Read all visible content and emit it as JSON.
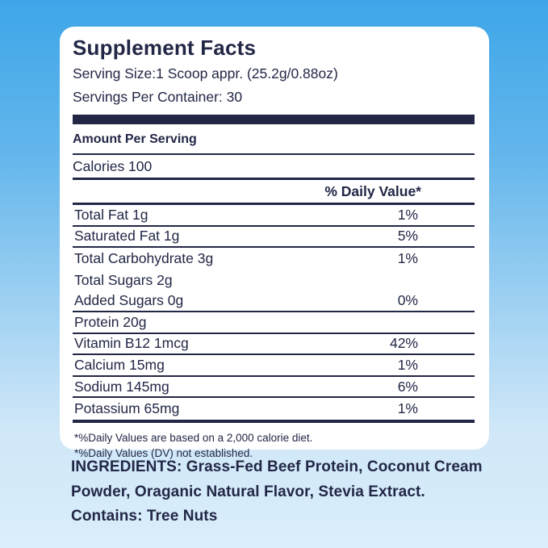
{
  "colors": {
    "text_navy": "#222746",
    "panel_background": "#ffffff",
    "background_top": "#3ea6e8",
    "background_bottom": "#daeefb"
  },
  "panel": {
    "title": "Supplement Facts",
    "serving_size": "Serving Size:1 Scoop appr. (25.2g/0.88oz)",
    "servings_per_container": "Servings Per Container: 30",
    "amount_per_serving": "Amount Per Serving",
    "calories": "Calories 100",
    "daily_value_header": "% Daily Value*",
    "rows": [
      {
        "label": "Total Fat 1g",
        "value": "1%",
        "divider": true
      },
      {
        "label": "Saturated Fat 1g",
        "value": "5%",
        "divider": true
      },
      {
        "label": "Total Carbohydrate 3g",
        "value": "1%",
        "divider": false
      },
      {
        "label": "Total Sugars 2g",
        "value": "",
        "divider": false
      },
      {
        "label": "Added Sugars 0g",
        "value": "0%",
        "divider": true
      },
      {
        "label": "Protein 20g",
        "value": "",
        "divider": true
      },
      {
        "label": "Vitamin B12 1mcg",
        "value": "42%",
        "divider": true
      },
      {
        "label": "Calcium 15mg",
        "value": "1%",
        "divider": true
      },
      {
        "label": "Sodium 145mg",
        "value": "6%",
        "divider": true
      },
      {
        "label": "Potassium 65mg",
        "value": "1%",
        "divider": false
      }
    ],
    "footnotes": [
      "*%Daily Values are based on a 2,000 calorie diet.",
      "*%Daily Values (DV) not established."
    ]
  },
  "ingredients": "INGREDIENTS: Grass-Fed Beef Protein, Coconut Cream Powder, Oraganic Natural Flavor, Stevia Extract. Contains: Tree Nuts"
}
